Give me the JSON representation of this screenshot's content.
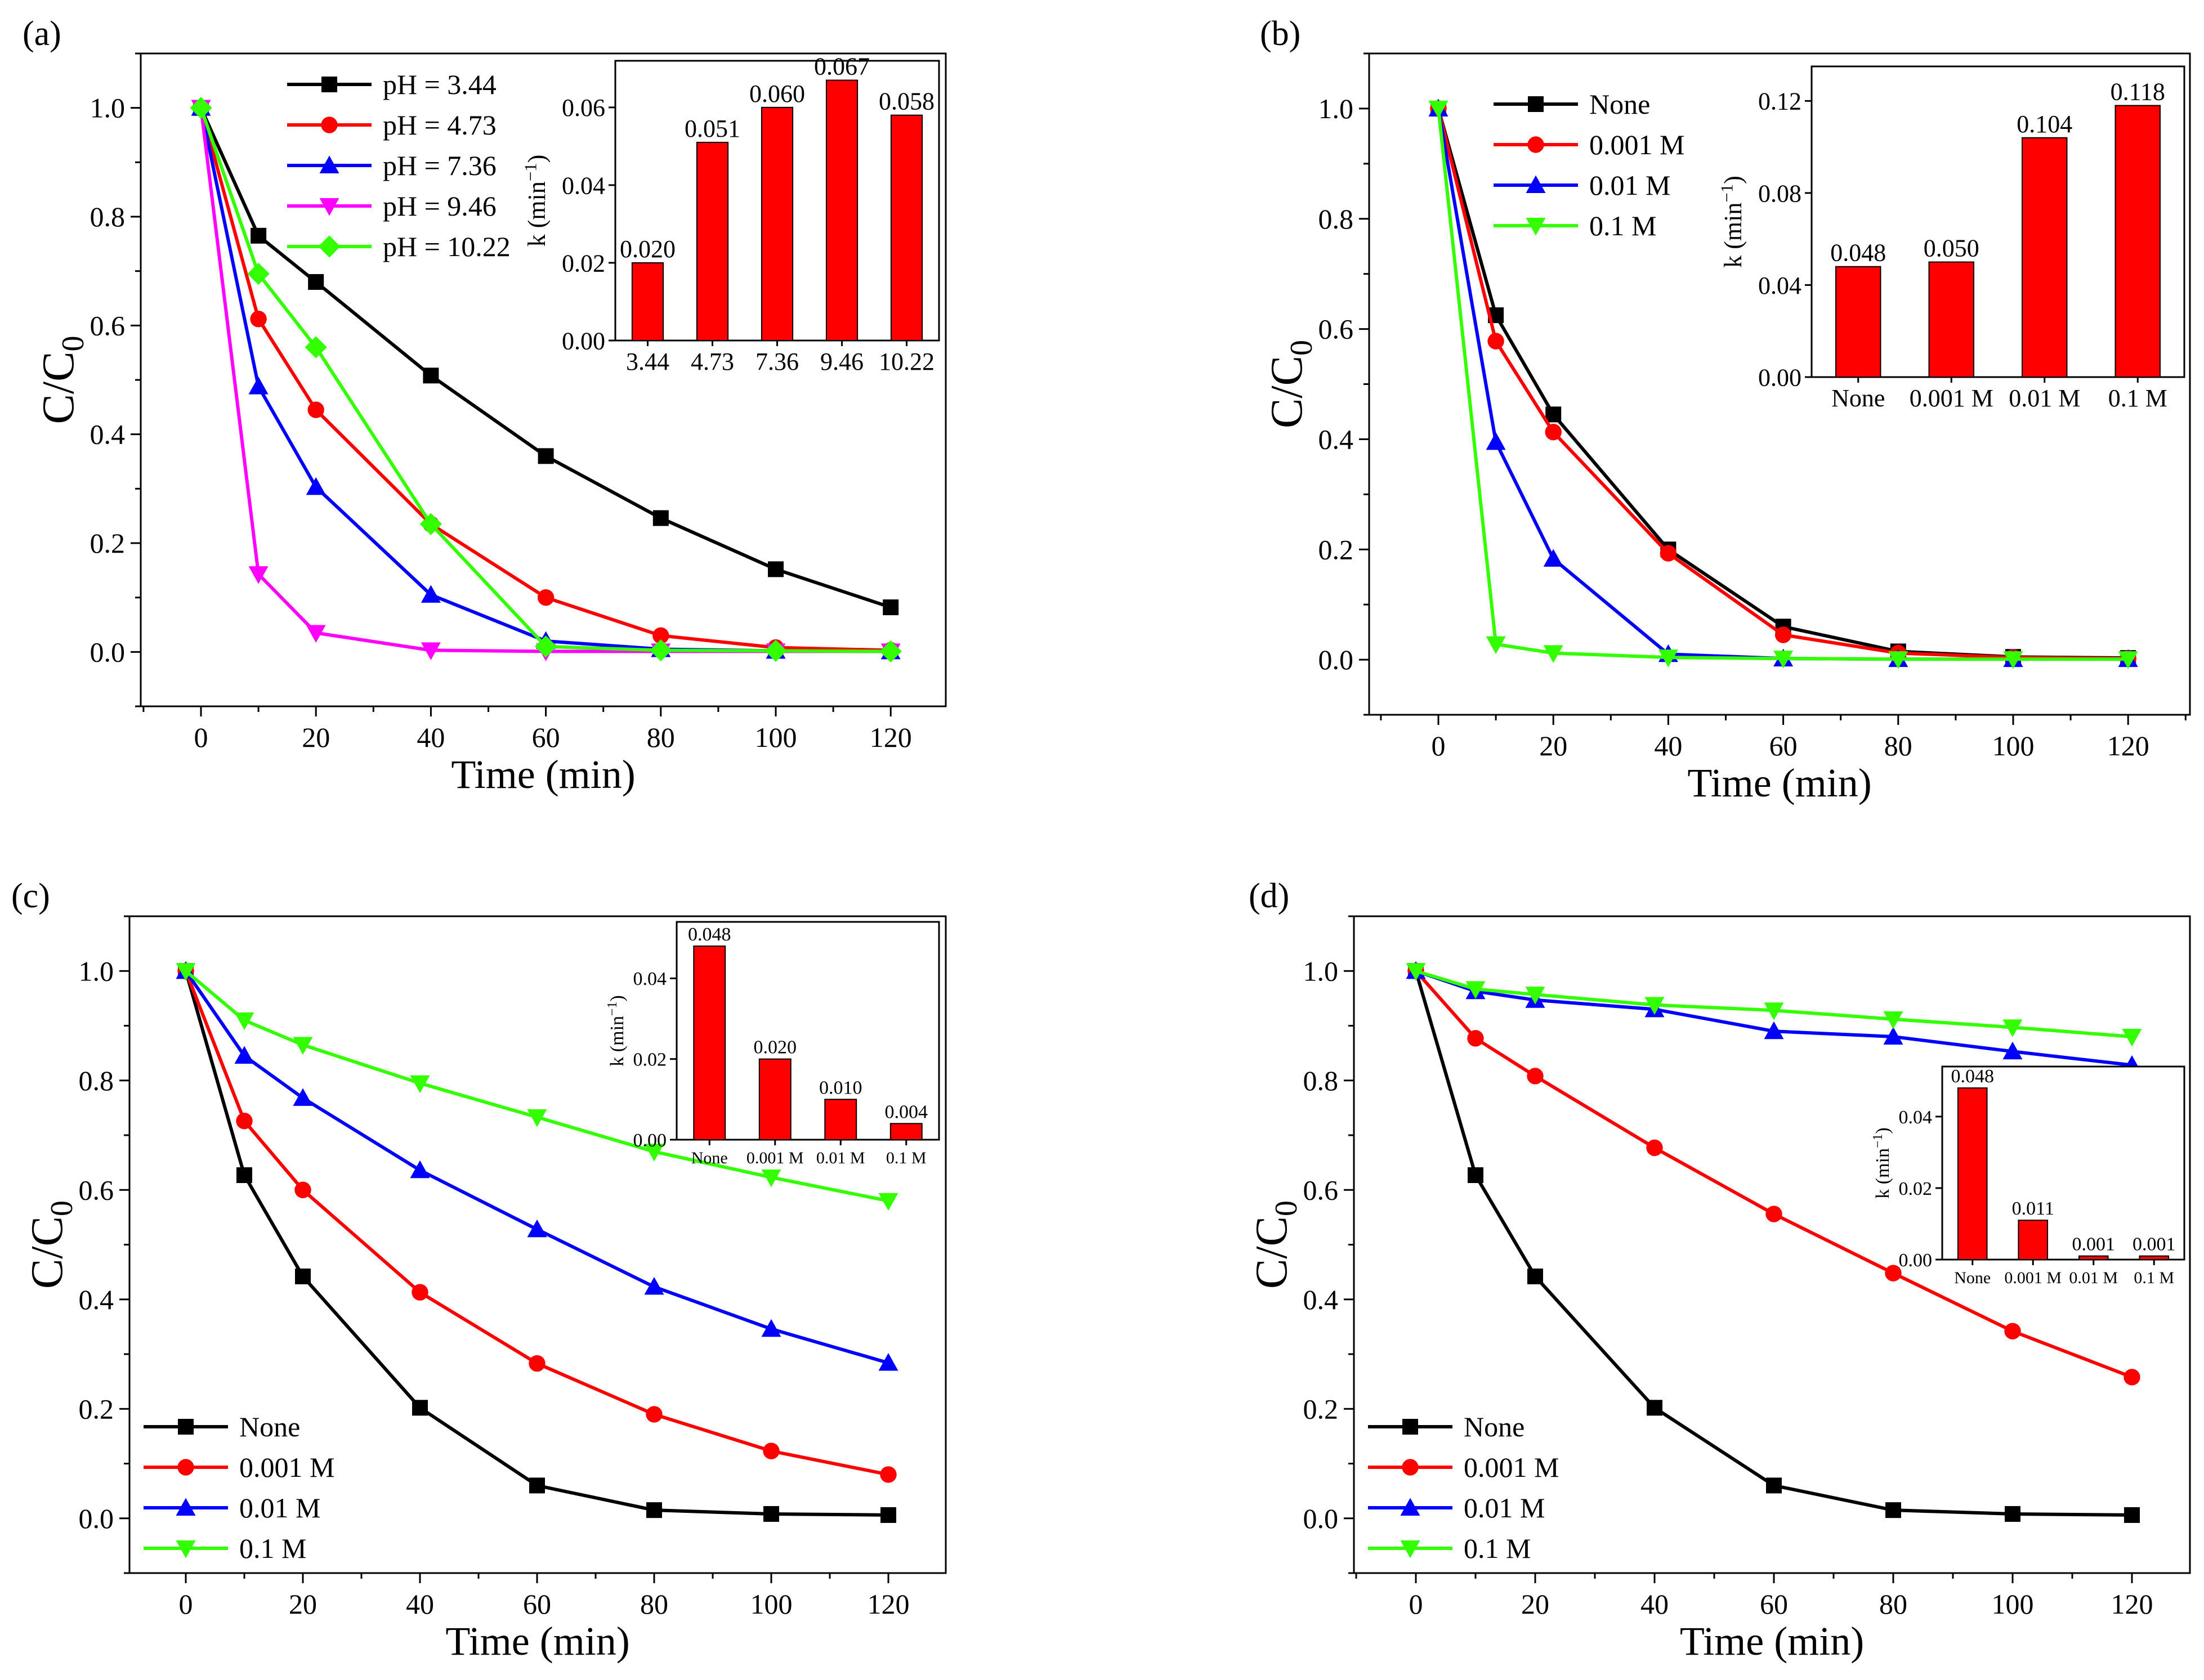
{
  "figure": {
    "x_unit_label": "Time (min)",
    "y_label_main": "C/C",
    "y_label_sub": "0",
    "inset_ylabel": "k (min",
    "inset_ylabel_sup": "−1",
    "inset_ylabel_close": ")"
  },
  "colors": {
    "black": "#000000",
    "red": "#ff0000",
    "blue": "#0000ff",
    "magenta": "#ff00ff",
    "green": "#33ff00",
    "bar": "#ff0000"
  },
  "chart_data": [
    {
      "panel": "(a)",
      "type": "line",
      "xlabel": "Time (min)",
      "ylabel": "C/C0",
      "xlim": [
        -10,
        130
      ],
      "ylim": [
        -0.1,
        1.1
      ],
      "xticks": [
        0,
        20,
        40,
        60,
        80,
        100,
        120
      ],
      "yticks": [
        0.0,
        0.2,
        0.4,
        0.6,
        0.8,
        1.0
      ],
      "legend_pos": "top-left",
      "series": [
        {
          "name": "pH = 3.44",
          "color": "#000000",
          "marker": "square",
          "x": [
            0,
            10,
            20,
            40,
            60,
            80,
            100,
            120
          ],
          "y": [
            1.0,
            0.765,
            0.68,
            0.508,
            0.36,
            0.246,
            0.152,
            0.082
          ]
        },
        {
          "name": "pH = 4.73",
          "color": "#ff0000",
          "marker": "circle",
          "x": [
            0,
            10,
            20,
            40,
            60,
            80,
            100,
            120
          ],
          "y": [
            1.0,
            0.612,
            0.445,
            0.235,
            0.1,
            0.03,
            0.008,
            0.003
          ]
        },
        {
          "name": "pH = 7.36",
          "color": "#0000ff",
          "marker": "triangle-up",
          "x": [
            0,
            10,
            20,
            40,
            60,
            80,
            100,
            120
          ],
          "y": [
            1.0,
            0.488,
            0.303,
            0.105,
            0.02,
            0.005,
            0.002,
            0.001
          ]
        },
        {
          "name": "pH = 9.46",
          "color": "#ff00ff",
          "marker": "triangle-down",
          "x": [
            0,
            10,
            20,
            40,
            60,
            80,
            100,
            120
          ],
          "y": [
            1.0,
            0.143,
            0.035,
            0.003,
            0.001,
            0.001,
            0.001,
            0.001
          ]
        },
        {
          "name": "pH = 10.22",
          "color": "#33ff00",
          "marker": "diamond",
          "x": [
            0,
            10,
            20,
            40,
            60,
            80,
            100,
            120
          ],
          "y": [
            1.0,
            0.695,
            0.56,
            0.235,
            0.01,
            0.003,
            0.002,
            0.001
          ]
        }
      ],
      "inset": {
        "type": "bar",
        "ylabel": "k (min−1)",
        "categories": [
          "3.44",
          "4.73",
          "7.36",
          "9.46",
          "10.22"
        ],
        "values": [
          0.02,
          0.051,
          0.06,
          0.067,
          0.058
        ],
        "labels": [
          "0.020",
          "0.051",
          "0.060",
          "0.067",
          "0.058"
        ],
        "ylim": [
          0,
          0.072
        ],
        "yticks": [
          0.0,
          0.02,
          0.04,
          0.06
        ],
        "ytick_labels": [
          "0.00",
          "0.02",
          "0.04",
          "0.06"
        ]
      }
    },
    {
      "panel": "(b)",
      "type": "line",
      "xlabel": "Time (min)",
      "ylabel": "C/C0",
      "xlim": [
        -10,
        130
      ],
      "ylim": [
        -0.1,
        1.1
      ],
      "xticks": [
        0,
        20,
        40,
        60,
        80,
        100,
        120
      ],
      "yticks": [
        0.0,
        0.2,
        0.4,
        0.6,
        0.8,
        1.0
      ],
      "legend_pos": "top-left",
      "series": [
        {
          "name": "None",
          "color": "#000000",
          "marker": "square",
          "x": [
            0,
            10,
            20,
            40,
            60,
            80,
            100,
            120
          ],
          "y": [
            1.0,
            0.625,
            0.445,
            0.2,
            0.06,
            0.015,
            0.005,
            0.003
          ]
        },
        {
          "name": "0.001 M",
          "color": "#ff0000",
          "marker": "circle",
          "x": [
            0,
            10,
            20,
            40,
            60,
            80,
            100,
            120
          ],
          "y": [
            1.0,
            0.578,
            0.413,
            0.193,
            0.045,
            0.012,
            0.004,
            0.002
          ]
        },
        {
          "name": "0.01  M",
          "color": "#0000ff",
          "marker": "triangle-up",
          "x": [
            0,
            10,
            20,
            40,
            60,
            80,
            100,
            120
          ],
          "y": [
            1.0,
            0.395,
            0.183,
            0.01,
            0.002,
            0.001,
            0.001,
            0.001
          ]
        },
        {
          "name": "0.1  M",
          "color": "#33ff00",
          "marker": "triangle-down",
          "x": [
            0,
            10,
            20,
            40,
            60,
            80,
            100,
            120
          ],
          "y": [
            1.0,
            0.028,
            0.012,
            0.004,
            0.002,
            0.001,
            0.001,
            0.001
          ]
        }
      ],
      "inset": {
        "type": "bar",
        "ylabel": "k (min−1)",
        "categories": [
          "None",
          "0.001 M",
          "0.01 M",
          "0.1 M"
        ],
        "values": [
          0.048,
          0.05,
          0.104,
          0.118
        ],
        "labels": [
          "0.048",
          "0.050",
          "0.104",
          "0.118"
        ],
        "ylim": [
          0,
          0.135
        ],
        "yticks": [
          0.0,
          0.04,
          0.08,
          0.12
        ],
        "ytick_labels": [
          "0.00",
          "0.04",
          "0.08",
          "0.12"
        ]
      }
    },
    {
      "panel": "(c)",
      "type": "line",
      "xlabel": "Time (min)",
      "ylabel": "C/C0",
      "xlim": [
        -10,
        130
      ],
      "ylim": [
        -0.1,
        1.1
      ],
      "xticks": [
        0,
        20,
        40,
        60,
        80,
        100,
        120
      ],
      "yticks": [
        0.0,
        0.2,
        0.4,
        0.6,
        0.8,
        1.0
      ],
      "legend_pos": "bottom-left",
      "series": [
        {
          "name": "None",
          "color": "#000000",
          "marker": "square",
          "x": [
            0,
            10,
            20,
            40,
            60,
            80,
            100,
            120
          ],
          "y": [
            1.0,
            0.627,
            0.442,
            0.202,
            0.06,
            0.015,
            0.008,
            0.006
          ]
        },
        {
          "name": "0.001 M",
          "color": "#ff0000",
          "marker": "circle",
          "x": [
            0,
            10,
            20,
            40,
            60,
            80,
            100,
            120
          ],
          "y": [
            1.0,
            0.726,
            0.6,
            0.413,
            0.283,
            0.19,
            0.123,
            0.08
          ]
        },
        {
          "name": "0.01  M",
          "color": "#0000ff",
          "marker": "triangle-up",
          "x": [
            0,
            10,
            20,
            40,
            60,
            80,
            100,
            120
          ],
          "y": [
            1.0,
            0.845,
            0.768,
            0.636,
            0.528,
            0.423,
            0.346,
            0.284
          ]
        },
        {
          "name": "0.1  M",
          "color": "#33ff00",
          "marker": "triangle-down",
          "x": [
            0,
            10,
            20,
            40,
            60,
            80,
            100,
            120
          ],
          "y": [
            1.0,
            0.91,
            0.865,
            0.795,
            0.733,
            0.67,
            0.623,
            0.58
          ]
        }
      ],
      "inset": {
        "type": "bar",
        "ylabel": "k (min−1)",
        "categories": [
          "None",
          "0.001 M",
          "0.01 M",
          "0.1 M"
        ],
        "values": [
          0.048,
          0.02,
          0.01,
          0.004
        ],
        "labels": [
          "0.048",
          "0.020",
          "0.010",
          "0.004"
        ],
        "ylim": [
          0,
          0.054
        ],
        "yticks": [
          0.0,
          0.02,
          0.04
        ],
        "ytick_labels": [
          "0.00",
          "0.02",
          "0.04"
        ]
      }
    },
    {
      "panel": "(d)",
      "type": "line",
      "xlabel": "Time (min)",
      "ylabel": "C/C0",
      "xlim": [
        -10,
        130
      ],
      "ylim": [
        -0.1,
        1.1
      ],
      "xticks": [
        0,
        20,
        40,
        60,
        80,
        100,
        120
      ],
      "yticks": [
        0.0,
        0.2,
        0.4,
        0.6,
        0.8,
        1.0
      ],
      "legend_pos": "bottom-left",
      "series": [
        {
          "name": "None",
          "color": "#000000",
          "marker": "square",
          "x": [
            0,
            10,
            20,
            40,
            60,
            80,
            100,
            120
          ],
          "y": [
            1.0,
            0.627,
            0.442,
            0.202,
            0.06,
            0.015,
            0.008,
            0.006
          ]
        },
        {
          "name": "0.001 M",
          "color": "#ff0000",
          "marker": "circle",
          "x": [
            0,
            10,
            20,
            40,
            60,
            80,
            100,
            120
          ],
          "y": [
            1.0,
            0.877,
            0.808,
            0.677,
            0.556,
            0.448,
            0.342,
            0.258
          ]
        },
        {
          "name": "0.01  M",
          "color": "#0000ff",
          "marker": "triangle-up",
          "x": [
            0,
            10,
            20,
            40,
            60,
            80,
            100,
            120
          ],
          "y": [
            1.0,
            0.963,
            0.947,
            0.93,
            0.89,
            0.88,
            0.853,
            0.828
          ]
        },
        {
          "name": "0.1  M",
          "color": "#33ff00",
          "marker": "triangle-down",
          "x": [
            0,
            10,
            20,
            40,
            60,
            80,
            100,
            120
          ],
          "y": [
            1.0,
            0.967,
            0.957,
            0.938,
            0.928,
            0.912,
            0.897,
            0.88
          ]
        }
      ],
      "inset": {
        "type": "bar",
        "ylabel": "k (min−1)",
        "categories": [
          "None",
          "0.001 M",
          "0.01 M",
          "0.1 M"
        ],
        "values": [
          0.048,
          0.011,
          0.001,
          0.001
        ],
        "labels": [
          "0.048",
          "0.011",
          "0.001",
          "0.001"
        ],
        "ylim": [
          0,
          0.054
        ],
        "yticks": [
          0.0,
          0.02,
          0.04
        ],
        "ytick_labels": [
          "0.00",
          "0.02",
          "0.04"
        ]
      }
    }
  ]
}
